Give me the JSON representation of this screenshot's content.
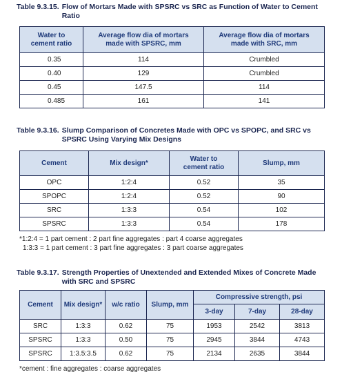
{
  "tables": [
    {
      "label": "Table 9.3.15.",
      "title": "Flow of Mortars Made with SPSRC vs SRC as Function of Water to Cement Ratio",
      "header": [
        "Water to\ncement ratio",
        "Average flow dia of mortars\nmade with SPSRC, mm",
        "Average flow dia of mortars\nmade with SRC, mm"
      ],
      "rows": [
        [
          "0.35",
          "114",
          "Crumbled"
        ],
        [
          "0.40",
          "129",
          "Crumbled"
        ],
        [
          "0.45",
          "147.5",
          "114"
        ],
        [
          "0.485",
          "161",
          "141"
        ]
      ],
      "notes": []
    },
    {
      "label": "Table 9.3.16.",
      "title": "Slump Comparison of Concretes Made with OPC vs SPOPC, and SRC vs SPSRC Using Varying Mix Designs",
      "header": [
        "Cement",
        "Mix design*",
        "Water to\ncement ratio",
        "Slump, mm"
      ],
      "rows": [
        [
          "OPC",
          "1:2:4",
          "0.52",
          "35"
        ],
        [
          "SPOPC",
          "1:2:4",
          "0.52",
          "90"
        ],
        [
          "SRC",
          "1:3:3",
          "0.54",
          "102"
        ],
        [
          "SPSRC",
          "1:3:3",
          "0.54",
          "178"
        ]
      ],
      "notes": [
        "*1:2:4 = 1 part cement : 2 part fine aggregates : part 4 coarse aggregates",
        "1:3:3 = 1 part cement : 3 part fine aggregates : 3 part coarse aggregates"
      ]
    },
    {
      "label": "Table 9.3.17.",
      "title": "Strength Properties of Unextended and Extended Mixes of Concrete Made with SRC and SPSRC",
      "header": [
        "Cement",
        "Mix design*",
        "w/c ratio",
        "Slump, mm",
        "Compressive strength, psi",
        "3-day",
        "7-day",
        "28-day"
      ],
      "rows": [
        [
          "SRC",
          "1:3:3",
          "0.62",
          "75",
          "1953",
          "2542",
          "3813"
        ],
        [
          "SPSRC",
          "1:3:3",
          "0.50",
          "75",
          "2945",
          "3844",
          "4743"
        ],
        [
          "SPSRC",
          "1:3.5:3.5",
          "0.62",
          "75",
          "2134",
          "2635",
          "3844"
        ]
      ],
      "notes": [
        "*cement : fine aggregates : coarse aggregates"
      ]
    }
  ]
}
